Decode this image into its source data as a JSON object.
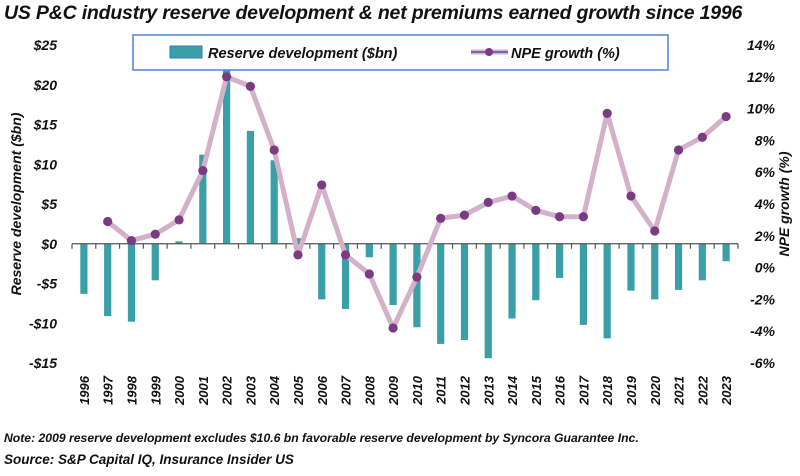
{
  "chart_data": {
    "type": "bar",
    "title": "US P&C industry reserve development & net premiums earned growth since 1996",
    "categories": [
      "1996",
      "1997",
      "1998",
      "1999",
      "2000",
      "2001",
      "2002",
      "2003",
      "2004",
      "2005",
      "2006",
      "2007",
      "2008",
      "2009",
      "2010",
      "2011",
      "2012",
      "2013",
      "2014",
      "2015",
      "2016",
      "2017",
      "2018",
      "2019",
      "2020",
      "2021",
      "2022",
      "2023"
    ],
    "series": [
      {
        "name": "Reserve development ($bn)",
        "type": "bar",
        "axis": "left",
        "color": "#3a9fa6",
        "values": [
          -6.3,
          -9.1,
          -9.8,
          -4.6,
          0.3,
          11.2,
          22.5,
          14.2,
          10.5,
          0.7,
          -7.0,
          -8.2,
          -1.7,
          -7.7,
          -10.5,
          -12.6,
          -12.1,
          -14.4,
          -9.4,
          -7.1,
          -4.3,
          -10.2,
          -11.9,
          -5.9,
          -7.0,
          -5.8,
          -4.6,
          -2.2
        ]
      },
      {
        "name": "NPE growth (%)",
        "type": "line",
        "axis": "right",
        "line_color": "#d5b0cb",
        "marker_color": "#7b3b82",
        "values": [
          null,
          2.9,
          1.7,
          2.1,
          3.0,
          6.1,
          12.0,
          11.4,
          7.4,
          0.8,
          5.2,
          0.8,
          -0.4,
          -3.8,
          -0.6,
          3.1,
          3.3,
          4.1,
          4.5,
          3.6,
          3.2,
          3.2,
          9.7,
          4.5,
          2.3,
          7.4,
          8.2,
          9.5
        ]
      }
    ],
    "ylabel": "Reserve development ($bn)",
    "ylim": [
      -15,
      25
    ],
    "yticks": [
      25,
      20,
      15,
      10,
      5,
      0,
      -5,
      -10,
      -15
    ],
    "ytick_labels": [
      "$25",
      "$20",
      "$15",
      "$10",
      "$5",
      "$0",
      "-$5",
      "-$10",
      "-$15"
    ],
    "y2label": "NPE growth (%)",
    "y2lim": [
      -6,
      14
    ],
    "y2ticks": [
      14,
      12,
      10,
      8,
      6,
      4,
      2,
      0,
      -2,
      -4,
      -6
    ],
    "y2tick_labels": [
      "14%",
      "12%",
      "10%",
      "8%",
      "6%",
      "4%",
      "2%",
      "0%",
      "-2%",
      "-4%",
      "-6%"
    ],
    "xlabel": "",
    "grid": false,
    "legend": {
      "placement": "top-center",
      "entries": [
        "Reserve development ($bn)",
        "NPE growth (%)"
      ],
      "border_color": "#4a86d6"
    }
  },
  "note": "Note: 2009 reserve development excludes $10.6 bn favorable reserve development by Syncora Guarantee Inc.",
  "source": "Source: S&P Capital IQ, Insurance Insider US"
}
